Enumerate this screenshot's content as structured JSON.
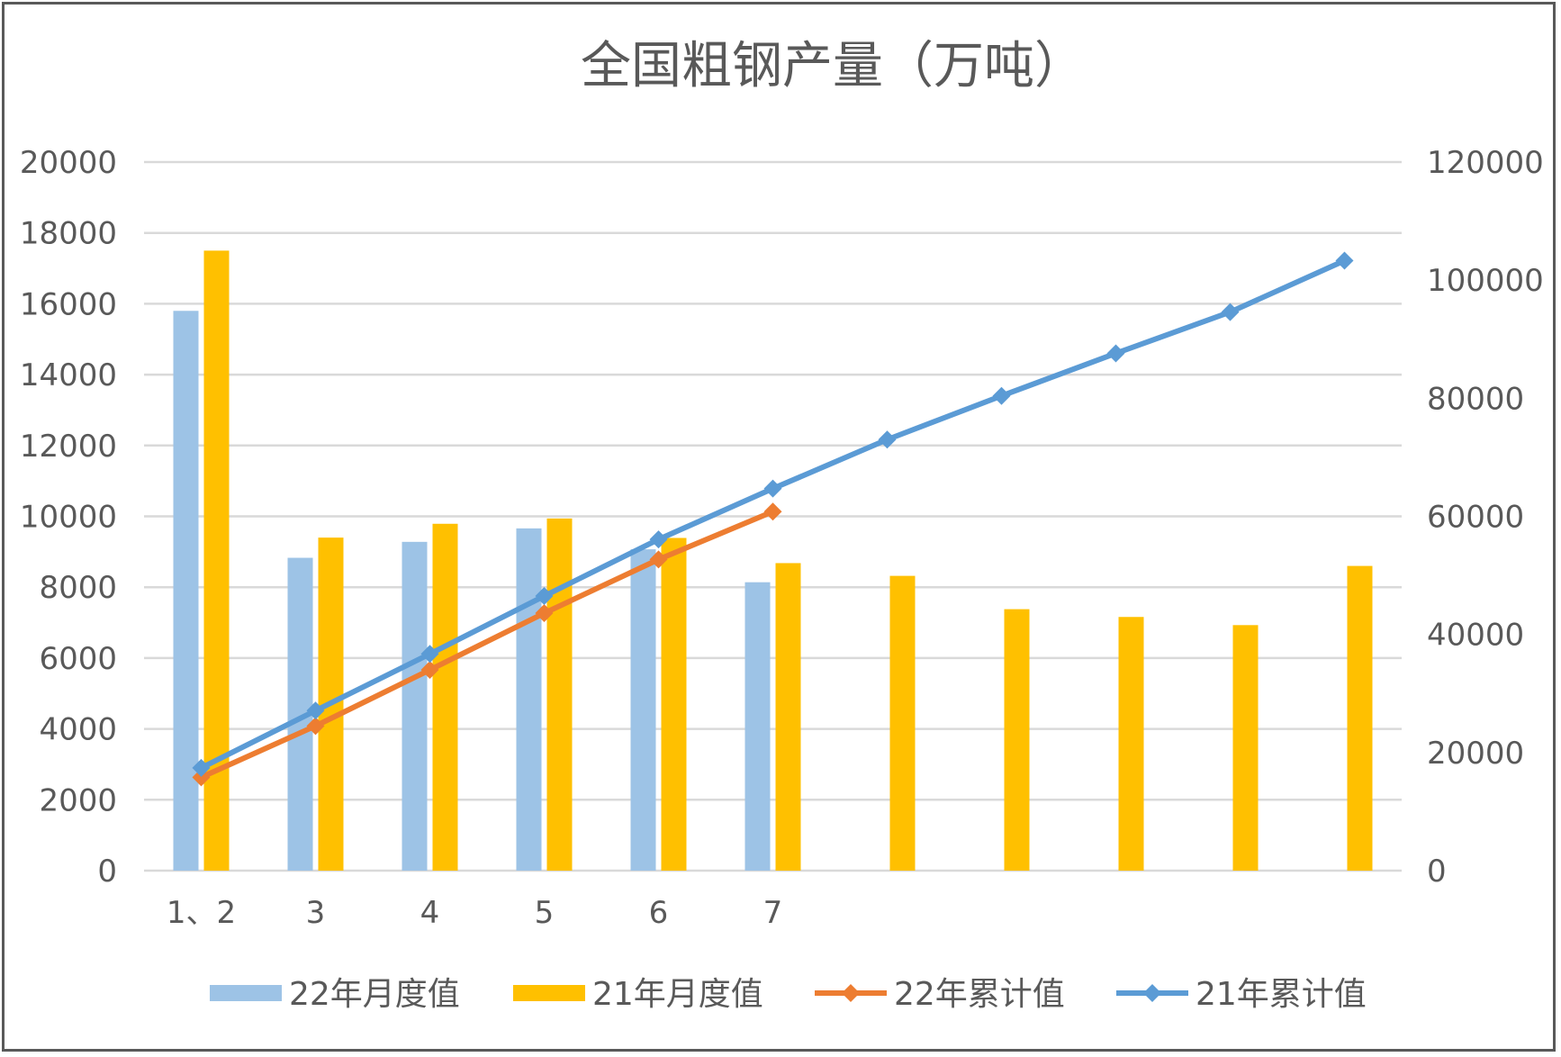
{
  "chart_data": {
    "type": "bar",
    "title": "全国粗钢产量（万吨）",
    "categories": [
      "1、2",
      "3",
      "4",
      "5",
      "6",
      "7",
      "",
      "",
      "",
      "",
      ""
    ],
    "y_left": {
      "min": 0,
      "max": 20000,
      "ticks": [
        "0",
        "2000",
        "4000",
        "6000",
        "8000",
        "10000",
        "12000",
        "14000",
        "16000",
        "18000",
        "20000"
      ]
    },
    "y_right": {
      "min": 0,
      "max": 120000,
      "ticks": [
        "0",
        "20000",
        "40000",
        "60000",
        "80000",
        "100000",
        "120000"
      ]
    },
    "grid": true,
    "legend_position": "bottom",
    "series": [
      {
        "name": "22年月度值",
        "type": "bar",
        "axis": "left",
        "color": "#9DC3E6",
        "values": [
          15800,
          8830,
          9280,
          9660,
          9070,
          8140,
          null,
          null,
          null,
          null,
          null
        ]
      },
      {
        "name": "21年月度值",
        "type": "bar",
        "axis": "left",
        "color": "#FFC000",
        "values": [
          17500,
          9400,
          9790,
          9940,
          9390,
          8680,
          8320,
          7380,
          7160,
          6930,
          8600
        ]
      },
      {
        "name": "22年累计值",
        "type": "line",
        "axis": "right",
        "color": "#ED7D31",
        "values": [
          15800,
          24500,
          34000,
          43600,
          52700,
          60800,
          null,
          null,
          null,
          null,
          null
        ]
      },
      {
        "name": "21年累计值",
        "type": "line",
        "axis": "right",
        "color": "#5B9BD5",
        "values": [
          17400,
          27100,
          36700,
          46500,
          56100,
          64700,
          73000,
          80400,
          87600,
          94600,
          103300
        ]
      }
    ]
  }
}
